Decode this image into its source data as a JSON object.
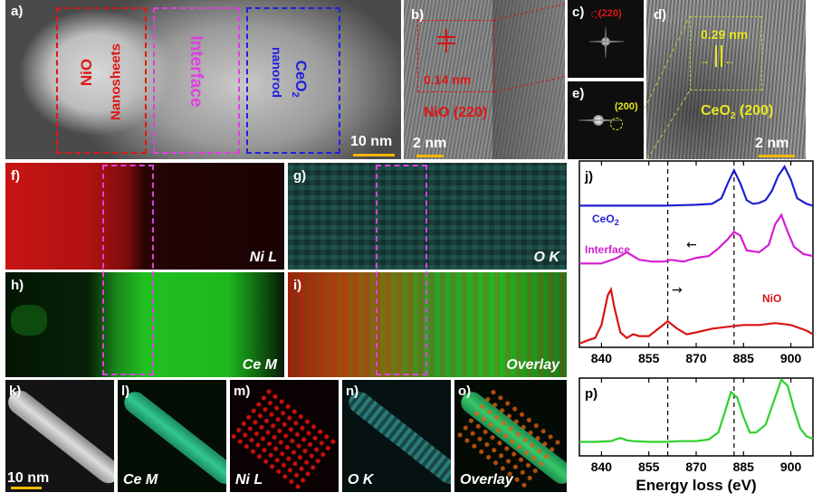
{
  "panels": {
    "a": {
      "label": "a)",
      "regions": {
        "nio": "NiO",
        "nio_sub": "Nanosheets",
        "interface": "Interface",
        "ceo2": "CeO",
        "ceo2_sub2": "2",
        "ceo2_sub": "nanorod"
      },
      "scale": "10 nm"
    },
    "b": {
      "label": "b)",
      "spacing": "0.14 nm",
      "plane": "NiO (220)",
      "scale": "2 nm"
    },
    "c": {
      "label": "c)",
      "plane": "(220)"
    },
    "d": {
      "label": "d)",
      "spacing": "0.29 nm",
      "plane_pre": "CeO",
      "plane_sub": "2",
      "plane_post": " (200)",
      "scale": "2 nm"
    },
    "e": {
      "label": "e)",
      "plane": "(200)"
    },
    "f": {
      "label": "f)",
      "tag": "Ni L"
    },
    "g": {
      "label": "g)",
      "tag": "O K"
    },
    "h": {
      "label": "h)",
      "tag": "Ce M"
    },
    "i": {
      "label": "i)",
      "tag": "Overlay"
    },
    "k": {
      "label": "k)",
      "scale": "10 nm"
    },
    "l": {
      "label": "l)",
      "tag": "Ce M"
    },
    "m": {
      "label": "m)",
      "tag": "Ni L"
    },
    "n": {
      "label": "n)",
      "tag": "O K"
    },
    "o": {
      "label": "o)",
      "tag": "Overlay"
    }
  },
  "chart_data": [
    {
      "type": "line",
      "panel": "j)",
      "series_labels": {
        "ceo2_pre": "CeO",
        "ceo2_sub": "2",
        "interface": "Interface",
        "nio": "NiO"
      },
      "xticks": [
        840,
        855,
        870,
        885,
        900
      ],
      "xlim": [
        833,
        907
      ],
      "dashed_lines_x": [
        861,
        882
      ],
      "series": [
        {
          "name": "CeO2",
          "color": "#1f1fd0",
          "x": [
            833,
            840,
            850,
            860,
            870,
            875,
            878,
            880,
            882,
            884,
            886,
            888,
            890,
            892,
            894,
            896,
            898,
            900,
            902,
            905,
            907
          ],
          "y": [
            0.76,
            0.76,
            0.76,
            0.76,
            0.765,
            0.77,
            0.8,
            0.88,
            0.95,
            0.88,
            0.79,
            0.77,
            0.775,
            0.79,
            0.84,
            0.92,
            0.97,
            0.9,
            0.8,
            0.77,
            0.76
          ]
        },
        {
          "name": "Interface",
          "color": "#d21fd2",
          "x": [
            833,
            840,
            845,
            848,
            852,
            856,
            860,
            862,
            866,
            870,
            874,
            877,
            880,
            882,
            884,
            886,
            890,
            893,
            895,
            897,
            899,
            901,
            904,
            907
          ],
          "y": [
            0.45,
            0.45,
            0.48,
            0.51,
            0.47,
            0.46,
            0.46,
            0.47,
            0.46,
            0.48,
            0.49,
            0.53,
            0.58,
            0.62,
            0.6,
            0.52,
            0.51,
            0.55,
            0.66,
            0.71,
            0.62,
            0.54,
            0.5,
            0.49
          ]
        },
        {
          "name": "NiO",
          "color": "#d81414",
          "x": [
            833,
            836,
            838,
            840,
            842,
            843,
            844,
            846,
            848,
            850,
            852,
            855,
            858,
            861,
            864,
            867,
            870,
            875,
            880,
            885,
            890,
            895,
            900,
            905,
            907
          ],
          "y": [
            0.02,
            0.04,
            0.05,
            0.12,
            0.28,
            0.31,
            0.22,
            0.08,
            0.05,
            0.07,
            0.06,
            0.06,
            0.1,
            0.14,
            0.1,
            0.07,
            0.08,
            0.1,
            0.11,
            0.12,
            0.12,
            0.13,
            0.12,
            0.09,
            0.07
          ]
        }
      ],
      "annotations": [
        "←",
        "→"
      ]
    },
    {
      "type": "line",
      "panel": "p)",
      "xlabel": "Energy loss (eV)",
      "xticks": [
        840,
        855,
        870,
        885,
        900
      ],
      "xlim": [
        833,
        907
      ],
      "dashed_lines_x": [
        861,
        882
      ],
      "series": [
        {
          "name": "",
          "color": "#2ed12e",
          "x": [
            833,
            838,
            843,
            846,
            848,
            850,
            855,
            860,
            865,
            870,
            874,
            877,
            879,
            881,
            883,
            885,
            887,
            889,
            892,
            895,
            897,
            899,
            901,
            903,
            905,
            907
          ],
          "y": [
            0.18,
            0.18,
            0.19,
            0.23,
            0.2,
            0.19,
            0.18,
            0.18,
            0.19,
            0.19,
            0.21,
            0.3,
            0.55,
            0.82,
            0.75,
            0.5,
            0.3,
            0.3,
            0.4,
            0.75,
            0.98,
            0.9,
            0.6,
            0.35,
            0.25,
            0.22
          ]
        }
      ]
    }
  ]
}
